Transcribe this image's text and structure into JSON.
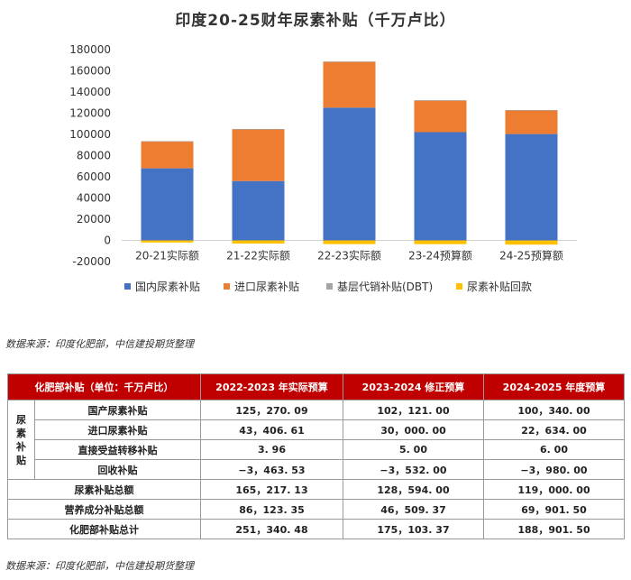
{
  "chart_data": {
    "type": "bar",
    "stacked": true,
    "title": "印度20-25财年尿素补贴（千万卢比）",
    "categories": [
      "20-21实际额",
      "21-22实际额",
      "22-23实际额",
      "23-24预算额",
      "24-25预算额"
    ],
    "series": [
      {
        "name": "国内尿素补贴",
        "color": "#4472c4",
        "values": [
          68000,
          56000,
          125270,
          102121,
          100340
        ]
      },
      {
        "name": "进口尿素补贴",
        "color": "#ed7d31",
        "values": [
          25500,
          49000,
          43407,
          30000,
          22634
        ]
      },
      {
        "name": "基层代销补贴(DBT)",
        "color": "#a5a5a5",
        "values": [
          4,
          4,
          4,
          5,
          6
        ]
      },
      {
        "name": "尿素补贴回款",
        "color": "#ffc000",
        "values": [
          -2000,
          -3000,
          -3464,
          -3532,
          -3980
        ]
      }
    ],
    "yticks": [
      "180000",
      "160000",
      "140000",
      "120000",
      "100000",
      "80000",
      "60000",
      "40000",
      "20000",
      "0",
      "-20000"
    ],
    "ylim": [
      -20000,
      180000
    ],
    "legend_position": "bottom"
  },
  "source_chart": "数据来源：印度化肥部，中信建投期货整理",
  "table": {
    "header": [
      "化肥部补贴（单位：千万卢比）",
      "2022-2023 年实际预算",
      "2023-2024 修正预算",
      "2024-2025 年度预算"
    ],
    "side_label": [
      "尿",
      "素",
      "补",
      "贴"
    ],
    "sub_rows": [
      {
        "label": "国产尿素补贴",
        "v1": "125，270. 09",
        "v2": "102，121. 00",
        "v3": "100，340. 00"
      },
      {
        "label": "进口尿素补贴",
        "v1": "43，406. 61",
        "v2": "30，000. 00",
        "v3": "22，634. 00"
      },
      {
        "label": "直接受益转移补贴",
        "v1": "3. 96",
        "v2": "5. 00",
        "v3": "6. 00"
      },
      {
        "label": "回收补贴",
        "v1": "−3，463. 53",
        "v2": "−3，532. 00",
        "v3": "−3，980. 00"
      }
    ],
    "sum_rows": [
      {
        "label": "尿素补贴总额",
        "v1": "165，217. 13",
        "v2": "128，594. 00",
        "v3": "119，000. 00"
      },
      {
        "label": "营养成分补贴总额",
        "v1": "86，123. 35",
        "v2": "46，509. 37",
        "v3": "69，901. 50"
      },
      {
        "label": "化肥部补贴总计",
        "v1": "251，340. 48",
        "v2": "175，103. 37",
        "v3": "188，901. 50"
      }
    ]
  },
  "source_table": "数据来源：印度化肥部，中信建投期货整理"
}
